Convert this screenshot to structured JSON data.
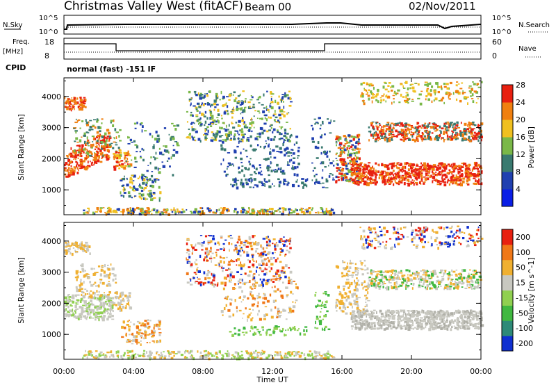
{
  "header": {
    "title": "Christmas Valley West (fitACF)",
    "beam": "Beam 00",
    "date": "02/Nov/2011"
  },
  "panels": {
    "nsky": {
      "left_label": "N.Sky",
      "left_ticks": [
        "10^5",
        "10^0"
      ],
      "right_ticks": [
        "10^5",
        "10^0"
      ],
      "right_label": "N.Search"
    },
    "freq": {
      "left_label_1": "Freq.",
      "left_label_2": "[MHz]",
      "left_ticks": [
        "18",
        "8"
      ],
      "right_ticks": [
        "60",
        "0"
      ],
      "right_label": "Nave"
    },
    "cpid": {
      "label": "CPID",
      "mode": "normal (fast) -151 IF"
    }
  },
  "chart_data": [
    {
      "type": "heatmap",
      "name": "power",
      "ylabel": "Slant Range [km]",
      "yticks": [
        1000,
        2000,
        3000,
        4000
      ],
      "ylim": [
        200,
        4600
      ],
      "colorbar": {
        "label": "Power [dB]",
        "ticks": [
          "4",
          "8",
          "12",
          "16",
          "20",
          "24",
          "28"
        ],
        "colors": [
          "#0a1ee6",
          "#2040b0",
          "#3a7a70",
          "#7ab848",
          "#f0c020",
          "#f08010",
          "#e82010"
        ]
      }
    },
    {
      "type": "heatmap",
      "name": "velocity",
      "ylabel": "Slant Range [km]",
      "yticks": [
        1000,
        2000,
        3000,
        4000
      ],
      "ylim": [
        200,
        4600
      ],
      "colorbar": {
        "label": "Velocity [m s^-1]",
        "ticks": [
          "200",
          "100",
          "50",
          "15",
          "-15",
          "-50",
          "-100",
          "-200"
        ],
        "colors": [
          "#1030d0",
          "#2e8a78",
          "#40b840",
          "#90d050",
          "#c8c8c0",
          "#f0b030",
          "#f07818",
          "#e82010"
        ]
      }
    }
  ],
  "xaxis": {
    "ticks": [
      "00:00",
      "04:00",
      "08:00",
      "12:00",
      "16:00",
      "20:00",
      "00:00"
    ],
    "label": "Time UT"
  }
}
